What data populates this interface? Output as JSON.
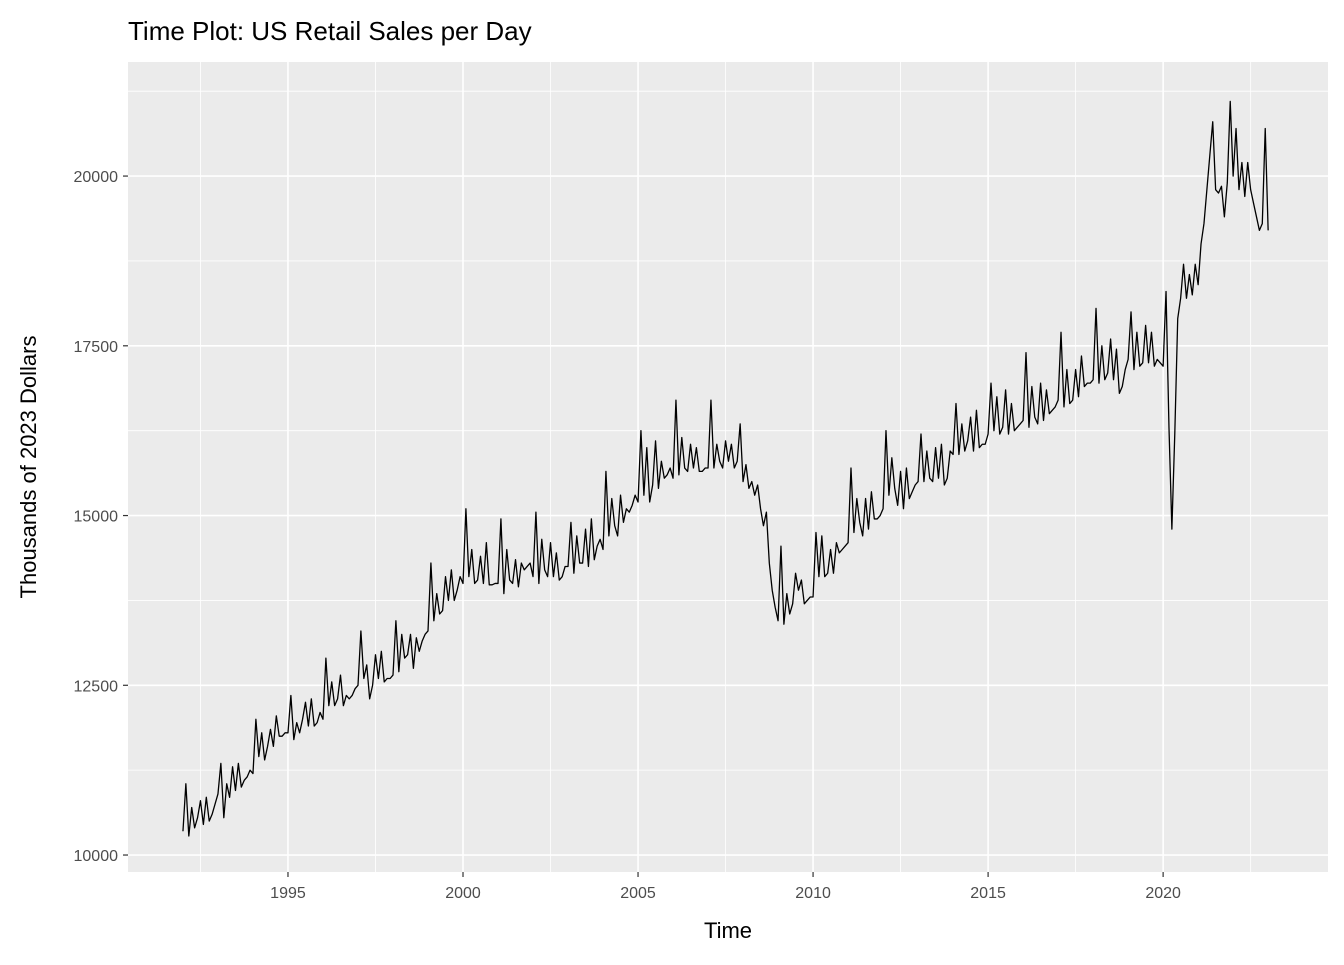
{
  "chart_data": {
    "type": "line",
    "title": "Time Plot: US Retail Sales per Day",
    "x_label": "Time",
    "y_label": "Thousands of 2023 Dollars",
    "xlim": [
      1990.43,
      2024.71
    ],
    "ylim": [
      9750,
      21680
    ],
    "xticks": [
      1995,
      2000,
      2005,
      2010,
      2015,
      2020
    ],
    "yticks": [
      10000,
      12500,
      15000,
      17500,
      20000
    ],
    "grid": true,
    "color": "#000000",
    "x": [
      1992,
      1992.083,
      1992.167,
      1992.25,
      1992.333,
      1992.417,
      1992.5,
      1992.583,
      1992.667,
      1992.75,
      1992.833,
      1992.917,
      1993,
      1993.083,
      1993.167,
      1993.25,
      1993.333,
      1993.417,
      1993.5,
      1993.583,
      1993.667,
      1993.75,
      1993.833,
      1993.917,
      1994,
      1994.083,
      1994.167,
      1994.25,
      1994.333,
      1994.417,
      1994.5,
      1994.583,
      1994.667,
      1994.75,
      1994.833,
      1994.917,
      1995,
      1995.083,
      1995.167,
      1995.25,
      1995.333,
      1995.417,
      1995.5,
      1995.583,
      1995.667,
      1995.75,
      1995.833,
      1995.917,
      1996,
      1996.083,
      1996.167,
      1996.25,
      1996.333,
      1996.417,
      1996.5,
      1996.583,
      1996.667,
      1996.75,
      1996.833,
      1996.917,
      1997,
      1997.083,
      1997.167,
      1997.25,
      1997.333,
      1997.417,
      1997.5,
      1997.583,
      1997.667,
      1997.75,
      1997.833,
      1997.917,
      1998,
      1998.083,
      1998.167,
      1998.25,
      1998.333,
      1998.417,
      1998.5,
      1998.583,
      1998.667,
      1998.75,
      1998.833,
      1998.917,
      1999,
      1999.083,
      1999.167,
      1999.25,
      1999.333,
      1999.417,
      1999.5,
      1999.583,
      1999.667,
      1999.75,
      1999.833,
      1999.917,
      2000,
      2000.083,
      2000.167,
      2000.25,
      2000.333,
      2000.417,
      2000.5,
      2000.583,
      2000.667,
      2000.75,
      2000.833,
      2000.917,
      2001,
      2001.083,
      2001.167,
      2001.25,
      2001.333,
      2001.417,
      2001.5,
      2001.583,
      2001.667,
      2001.75,
      2001.833,
      2001.917,
      2002,
      2002.083,
      2002.167,
      2002.25,
      2002.333,
      2002.417,
      2002.5,
      2002.583,
      2002.667,
      2002.75,
      2002.833,
      2002.917,
      2003,
      2003.083,
      2003.167,
      2003.25,
      2003.333,
      2003.417,
      2003.5,
      2003.583,
      2003.667,
      2003.75,
      2003.833,
      2003.917,
      2004,
      2004.083,
      2004.167,
      2004.25,
      2004.333,
      2004.417,
      2004.5,
      2004.583,
      2004.667,
      2004.75,
      2004.833,
      2004.917,
      2005,
      2005.083,
      2005.167,
      2005.25,
      2005.333,
      2005.417,
      2005.5,
      2005.583,
      2005.667,
      2005.75,
      2005.833,
      2005.917,
      2006,
      2006.083,
      2006.167,
      2006.25,
      2006.333,
      2006.417,
      2006.5,
      2006.583,
      2006.667,
      2006.75,
      2006.833,
      2006.917,
      2007,
      2007.083,
      2007.167,
      2007.25,
      2007.333,
      2007.417,
      2007.5,
      2007.583,
      2007.667,
      2007.75,
      2007.833,
      2007.917,
      2008,
      2008.083,
      2008.167,
      2008.25,
      2008.333,
      2008.417,
      2008.5,
      2008.583,
      2008.667,
      2008.75,
      2008.833,
      2008.917,
      2009,
      2009.083,
      2009.167,
      2009.25,
      2009.333,
      2009.417,
      2009.5,
      2009.583,
      2009.667,
      2009.75,
      2009.833,
      2009.917,
      2010,
      2010.083,
      2010.167,
      2010.25,
      2010.333,
      2010.417,
      2010.5,
      2010.583,
      2010.667,
      2010.75,
      2010.833,
      2010.917,
      2011,
      2011.083,
      2011.167,
      2011.25,
      2011.333,
      2011.417,
      2011.5,
      2011.583,
      2011.667,
      2011.75,
      2011.833,
      2011.917,
      2012,
      2012.083,
      2012.167,
      2012.25,
      2012.333,
      2012.417,
      2012.5,
      2012.583,
      2012.667,
      2012.75,
      2012.833,
      2012.917,
      2013,
      2013.083,
      2013.167,
      2013.25,
      2013.333,
      2013.417,
      2013.5,
      2013.583,
      2013.667,
      2013.75,
      2013.833,
      2013.917,
      2014,
      2014.083,
      2014.167,
      2014.25,
      2014.333,
      2014.417,
      2014.5,
      2014.583,
      2014.667,
      2014.75,
      2014.833,
      2014.917,
      2015,
      2015.083,
      2015.167,
      2015.25,
      2015.333,
      2015.417,
      2015.5,
      2015.583,
      2015.667,
      2015.75,
      2015.833,
      2015.917,
      2016,
      2016.083,
      2016.167,
      2016.25,
      2016.333,
      2016.417,
      2016.5,
      2016.583,
      2016.667,
      2016.75,
      2016.833,
      2016.917,
      2017,
      2017.083,
      2017.167,
      2017.25,
      2017.333,
      2017.417,
      2017.5,
      2017.583,
      2017.667,
      2017.75,
      2017.833,
      2017.917,
      2018,
      2018.083,
      2018.167,
      2018.25,
      2018.333,
      2018.417,
      2018.5,
      2018.583,
      2018.667,
      2018.75,
      2018.833,
      2018.917,
      2019,
      2019.083,
      2019.167,
      2019.25,
      2019.333,
      2019.417,
      2019.5,
      2019.583,
      2019.667,
      2019.75,
      2019.833,
      2019.917,
      2020,
      2020.083,
      2020.167,
      2020.25,
      2020.333,
      2020.417,
      2020.5,
      2020.583,
      2020.667,
      2020.75,
      2020.833,
      2020.917,
      2021,
      2021.083,
      2021.167,
      2021.25,
      2021.333,
      2021.417,
      2021.5,
      2021.583,
      2021.667,
      2021.75,
      2021.833,
      2021.917,
      2022,
      2022.083,
      2022.167,
      2022.25,
      2022.333,
      2022.417,
      2022.5,
      2022.583,
      2022.667,
      2022.75,
      2022.833,
      2022.917,
      2023
    ],
    "values": [
      10350,
      11050,
      10280,
      10700,
      10400,
      10550,
      10800,
      10450,
      10850,
      10500,
      10600,
      10750,
      10900,
      11350,
      10550,
      11050,
      10850,
      11300,
      10950,
      11350,
      11000,
      11100,
      11150,
      11250,
      11200,
      12000,
      11450,
      11800,
      11400,
      11600,
      11850,
      11600,
      12050,
      11750,
      11750,
      11800,
      11800,
      12350,
      11700,
      11950,
      11800,
      12000,
      12250,
      11900,
      12300,
      11900,
      11950,
      12100,
      12000,
      12900,
      12200,
      12550,
      12200,
      12300,
      12650,
      12200,
      12350,
      12300,
      12350,
      12450,
      12500,
      13300,
      12600,
      12800,
      12300,
      12500,
      12950,
      12600,
      13000,
      12550,
      12600,
      12600,
      12650,
      13450,
      12700,
      13250,
      12900,
      12950,
      13250,
      12750,
      13200,
      13000,
      13150,
      13250,
      13300,
      14300,
      13450,
      13850,
      13550,
      13600,
      14100,
      13750,
      14200,
      13750,
      13900,
      14100,
      14000,
      15100,
      14100,
      14500,
      14000,
      14050,
      14400,
      14000,
      14600,
      13980,
      13980,
      14000,
      14000,
      14950,
      13850,
      14500,
      14050,
      14000,
      14350,
      13950,
      14300,
      14200,
      14250,
      14300,
      14100,
      15050,
      14000,
      14650,
      14200,
      14100,
      14600,
      14100,
      14450,
      14050,
      14100,
      14250,
      14250,
      14900,
      14150,
      14700,
      14300,
      14300,
      14800,
      14250,
      14950,
      14350,
      14550,
      14650,
      14500,
      15650,
      14700,
      15250,
      14850,
      14700,
      15300,
      14900,
      15100,
      15050,
      15150,
      15300,
      15200,
      16250,
      15300,
      16000,
      15200,
      15450,
      16100,
      15400,
      15800,
      15550,
      15600,
      15700,
      15550,
      16700,
      15600,
      16150,
      15700,
      15650,
      16050,
      15700,
      16000,
      15650,
      15650,
      15700,
      15700,
      16700,
      15700,
      16050,
      15800,
      15700,
      16100,
      15800,
      16050,
      15700,
      15800,
      16350,
      15500,
      15750,
      15400,
      15500,
      15300,
      15450,
      15100,
      14850,
      15050,
      14300,
      13900,
      13650,
      13450,
      14550,
      13400,
      13850,
      13550,
      13700,
      14150,
      13900,
      14050,
      13700,
      13750,
      13800,
      13800,
      14750,
      14100,
      14700,
      14100,
      14150,
      14500,
      14150,
      14600,
      14450,
      14500,
      14550,
      14600,
      15700,
      14750,
      15250,
      14900,
      14700,
      15250,
      14800,
      15350,
      14950,
      14950,
      15000,
      15100,
      16250,
      15300,
      15850,
      15400,
      15150,
      15650,
      15100,
      15700,
      15250,
      15350,
      15450,
      15500,
      16200,
      15500,
      15950,
      15550,
      15500,
      16000,
      15550,
      16050,
      15450,
      15550,
      15950,
      15900,
      16650,
      15900,
      16350,
      15950,
      16100,
      16450,
      15950,
      16550,
      16000,
      16050,
      16050,
      16200,
      16950,
      16250,
      16750,
      16200,
      16300,
      16850,
      16200,
      16650,
      16250,
      16300,
      16350,
      16400,
      17400,
      16300,
      16900,
      16450,
      16350,
      16950,
      16400,
      16850,
      16500,
      16550,
      16600,
      16700,
      17700,
      16600,
      17150,
      16650,
      16700,
      17150,
      16750,
      17350,
      16900,
      16950,
      16950,
      17000,
      18050,
      16950,
      17500,
      17000,
      17100,
      17600,
      17000,
      17450,
      16800,
      16900,
      17150,
      17300,
      18000,
      17150,
      17700,
      17200,
      17250,
      17800,
      17250,
      17700,
      17200,
      17300,
      17250,
      17200,
      18300,
      16300,
      14800,
      16200,
      17900,
      18200,
      18700,
      18200,
      18550,
      18250,
      18700,
      18400,
      19000,
      19300,
      19800,
      20300,
      20800,
      19800,
      19750,
      19850,
      19400,
      19900,
      21100,
      20000,
      20700,
      19800,
      20200,
      19700,
      20200,
      19800,
      19600,
      19400,
      19200,
      19300,
      20700,
      19200
    ]
  }
}
